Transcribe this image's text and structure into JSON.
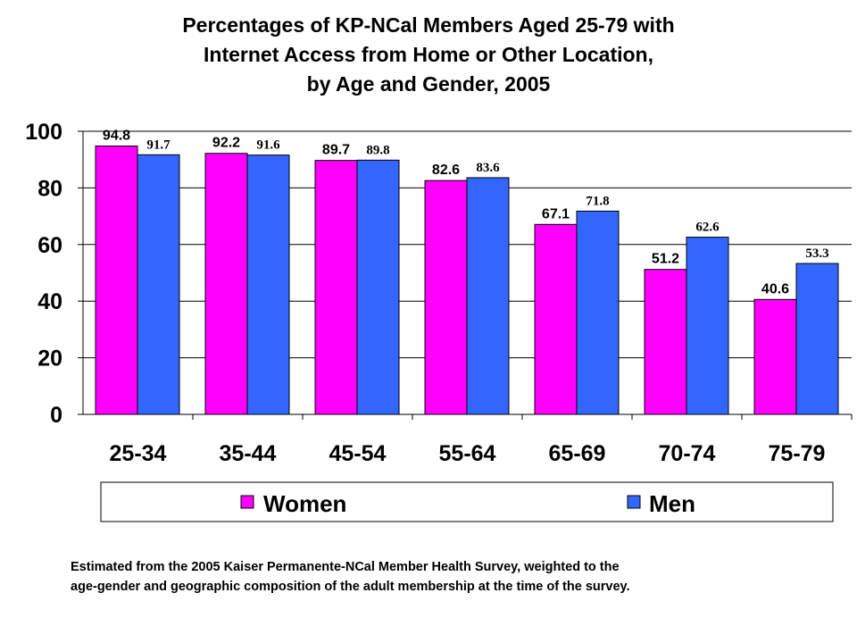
{
  "chart_data": {
    "type": "bar",
    "title_lines": [
      "Percentages of KP-NCal Members Aged 25-79 with",
      "Internet Access from Home or Other Location,",
      "by Age and Gender, 2005"
    ],
    "categories": [
      "25-34",
      "35-44",
      "45-54",
      "55-64",
      "65-69",
      "70-74",
      "75-79"
    ],
    "series": [
      {
        "name": "Women",
        "color": "#ff00ff",
        "values": [
          94.8,
          92.2,
          89.7,
          82.6,
          67.1,
          51.2,
          40.6
        ],
        "labels": [
          "94.8",
          "92.2",
          "89.7",
          "82.6",
          "67.1",
          "51.2",
          "40.6"
        ]
      },
      {
        "name": "Men",
        "color": "#3366ff",
        "values": [
          91.7,
          91.6,
          89.8,
          83.6,
          71.8,
          62.6,
          53.3
        ],
        "labels": [
          "91.7",
          "91.6",
          "89.8",
          "83.6",
          "71.8",
          "62.6",
          "53.3"
        ]
      }
    ],
    "yticks": [
      "0",
      "20",
      "40",
      "60",
      "80",
      "100"
    ],
    "ylim": [
      0,
      100
    ],
    "grid": true,
    "legend_position": "bottom"
  },
  "footnote": [
    "Estimated from the 2005 Kaiser Permanente-NCal Member Health Survey, weighted to the",
    "age-gender and geographic composition of the adult membership at the time of the survey."
  ]
}
